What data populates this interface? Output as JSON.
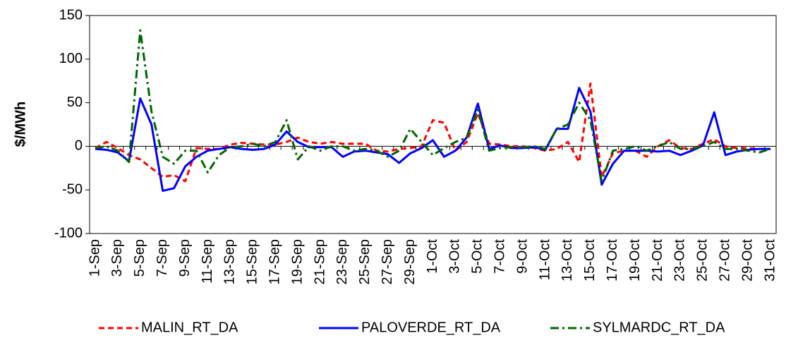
{
  "chart_data": {
    "type": "line",
    "y_label": "$/MWh",
    "categories": [
      "1-Sep",
      null,
      "3-Sep",
      null,
      "5-Sep",
      null,
      "7-Sep",
      null,
      "9-Sep",
      null,
      "11-Sep",
      null,
      "13-Sep",
      null,
      "15-Sep",
      null,
      "17-Sep",
      null,
      "19-Sep",
      null,
      "21-Sep",
      null,
      "23-Sep",
      null,
      "25-Sep",
      null,
      "27-Sep",
      null,
      "29-Sep",
      null,
      "1-Oct",
      null,
      "3-Oct",
      null,
      "5-Oct",
      null,
      "7-Oct",
      null,
      "9-Oct",
      null,
      "11-Oct",
      null,
      "13-Oct",
      null,
      "15-Oct",
      null,
      "17-Oct",
      null,
      "19-Oct",
      null,
      "21-Oct",
      null,
      "23-Oct",
      null,
      "25-Oct",
      null,
      "27-Oct",
      null,
      "29-Oct",
      null,
      "31-Oct"
    ],
    "series": [
      {
        "name": "MALIN_RT_DA",
        "color": "#ff0000",
        "values": [
          -2,
          5,
          -2,
          -10,
          -15,
          -25,
          -35,
          -33,
          -40,
          -2,
          -3,
          -3,
          2,
          4,
          3,
          2,
          2,
          5,
          10,
          5,
          3,
          5,
          3,
          3,
          3,
          -5,
          -6,
          -3,
          -2,
          0,
          30,
          27,
          -5,
          5,
          38,
          3,
          2,
          0,
          0,
          -2,
          -5,
          -3,
          5,
          -18,
          72,
          -35,
          -8,
          -5,
          -5,
          -12,
          0,
          7,
          -2,
          -3,
          3,
          8,
          0,
          -2,
          -2,
          -3,
          -3
        ]
      },
      {
        "name": "PALOVERDE_RT_DA",
        "color": "#0000ff",
        "values": [
          -3,
          -4,
          -7,
          -17,
          55,
          25,
          -51,
          -48,
          -23,
          -12,
          -5,
          -3,
          -1,
          -3,
          -4,
          -3,
          2,
          17,
          5,
          -1,
          -1,
          -1,
          -12,
          -6,
          -5,
          -7,
          -9,
          -19,
          -8,
          -2,
          7,
          -12,
          -5,
          10,
          49,
          -3,
          1,
          -2,
          -2,
          -1,
          -4,
          20,
          20,
          67,
          40,
          -44,
          -20,
          -5,
          -5,
          -5,
          -6,
          -5,
          -10,
          -5,
          1,
          39,
          -10,
          -6,
          -4,
          -3,
          -3
        ]
      },
      {
        "name": "SYLMARDC_RT_DA",
        "color": "#006400",
        "values": [
          -2,
          0,
          -5,
          -18,
          133,
          40,
          -12,
          -20,
          -5,
          -5,
          -30,
          -10,
          -1,
          0,
          3,
          0,
          5,
          30,
          -15,
          0,
          -5,
          0,
          0,
          -5,
          -3,
          -5,
          -12,
          -5,
          20,
          5,
          -10,
          -2,
          5,
          10,
          42,
          -5,
          -2,
          -1,
          -1,
          0,
          -3,
          20,
          25,
          50,
          30,
          -40,
          -5,
          -3,
          0,
          -5,
          0,
          5,
          -3,
          -3,
          0,
          5,
          -3,
          -3,
          -5,
          -7,
          -3
        ]
      }
    ],
    "ylim": [
      -100,
      150
    ],
    "yticks": [
      -100,
      -50,
      0,
      50,
      100,
      150
    ],
    "legend": "bottom"
  }
}
